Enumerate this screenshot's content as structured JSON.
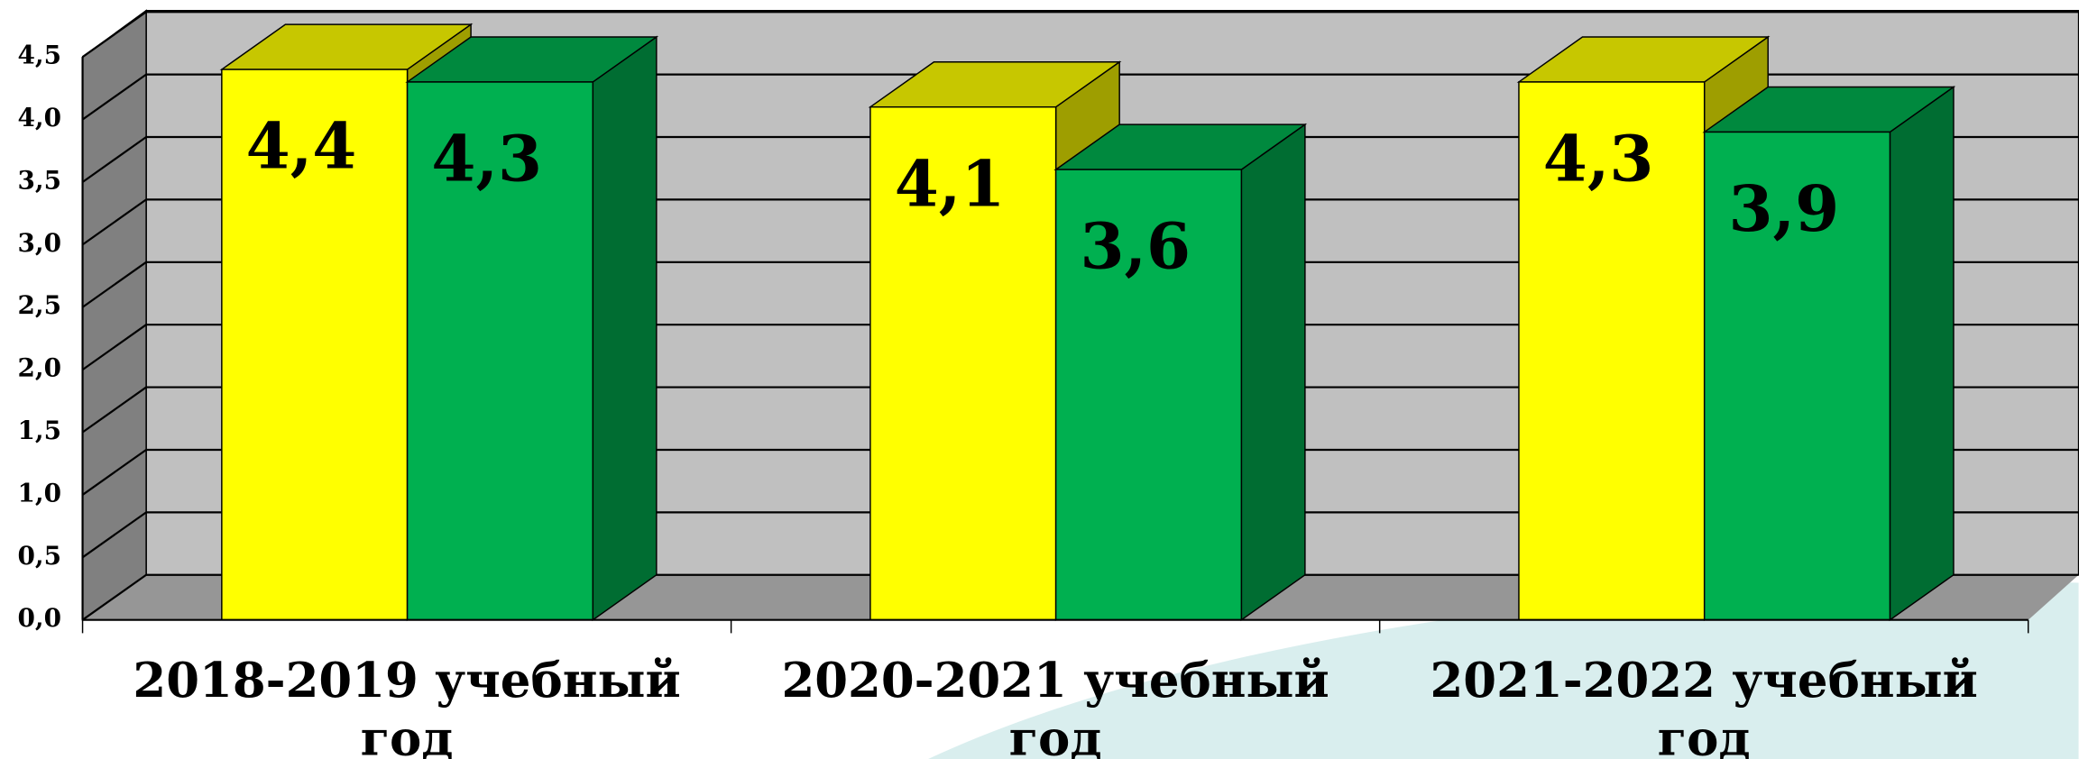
{
  "chart_data": {
    "type": "bar3d",
    "categories": [
      "2018-2019 учебный год",
      "2020-2021 учебный год",
      "2021-2022 учебный год"
    ],
    "series": [
      {
        "color": "#ffff00",
        "values": [
          4.4,
          4.1,
          4.3
        ],
        "value_labels": [
          "4,4",
          "4,1",
          "4,3"
        ]
      },
      {
        "color": "#00b050",
        "values": [
          4.3,
          3.6,
          3.9
        ],
        "value_labels": [
          "4,3",
          "3,6",
          "3,9"
        ]
      }
    ],
    "ylim": [
      0,
      4.5
    ],
    "yticks": [
      {
        "value": 0,
        "label": "0,0"
      },
      {
        "value": 0.5,
        "label": "0,5"
      },
      {
        "value": 1,
        "label": "1,0"
      },
      {
        "value": 1.5,
        "label": "1,5"
      },
      {
        "value": 2,
        "label": "2,0"
      },
      {
        "value": 2.5,
        "label": "2,5"
      },
      {
        "value": 3,
        "label": "3,0"
      },
      {
        "value": 3.5,
        "label": "3,5"
      },
      {
        "value": 4,
        "label": "4,0"
      },
      {
        "value": 4.5,
        "label": "4,5"
      }
    ],
    "grid": true
  }
}
